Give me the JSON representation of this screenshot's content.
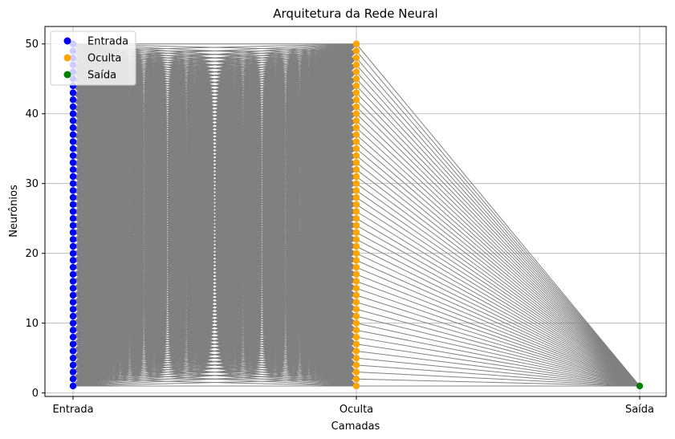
{
  "chart_data": {
    "type": "scatter",
    "title": "Arquitetura da Rede Neural",
    "xlabel": "Camadas",
    "ylabel": "Neurônios",
    "categories": [
      "Entrada",
      "Oculta",
      "Saída"
    ],
    "ylim": [
      -0.5,
      52.5
    ],
    "y_ticks": [
      0,
      10,
      20,
      30,
      40,
      50
    ],
    "grid": true,
    "legend_position": "top-left",
    "series": [
      {
        "name": "Entrada",
        "layer": "Entrada",
        "neurons": 50,
        "color": "#0000ff"
      },
      {
        "name": "Oculta",
        "layer": "Oculta",
        "neurons": 50,
        "color": "#ffa500"
      },
      {
        "name": "Saída",
        "layer": "Saída",
        "neurons": 1,
        "color": "#008000"
      }
    ],
    "connections": [
      {
        "from": "Entrada",
        "to": "Oculta",
        "type": "all-to-all"
      },
      {
        "from": "Oculta",
        "to": "Saída",
        "type": "all-to-all"
      }
    ],
    "connection_color": "#808080"
  }
}
